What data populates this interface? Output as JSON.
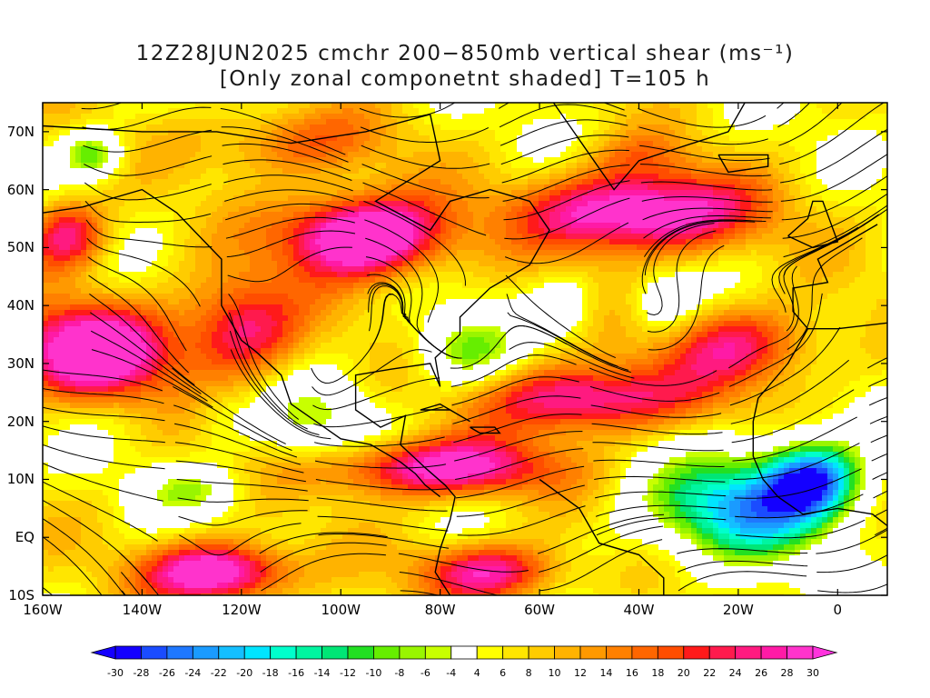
{
  "title_line1": "12Z28JUN2025 cmchr 200−850mb vertical shear (ms⁻¹)",
  "title_line2": "[Only zonal componetnt shaded] T=105 h",
  "lat_labels": [
    "70N",
    "60N",
    "50N",
    "40N",
    "30N",
    "20N",
    "10N",
    "EQ",
    "10S"
  ],
  "lon_labels": [
    "160W",
    "140W",
    "120W",
    "100W",
    "80W",
    "60W",
    "40W",
    "20W",
    "0"
  ],
  "colorbar": {
    "labels": [
      "-30",
      "-28",
      "-26",
      "-24",
      "-22",
      "-20",
      "-18",
      "-16",
      "-14",
      "-12",
      "-10",
      "-8",
      "-6",
      "-4",
      "4",
      "6",
      "8",
      "10",
      "12",
      "14",
      "16",
      "18",
      "20",
      "22",
      "24",
      "26",
      "28",
      "30"
    ],
    "colors": [
      "#1400ff",
      "#1a4cff",
      "#1f78ff",
      "#1a9bff",
      "#14bfff",
      "#00e5ff",
      "#00ffcc",
      "#00f5a0",
      "#00e676",
      "#22e022",
      "#66ee00",
      "#99f500",
      "#c8ff00",
      "#ffffff",
      "#ffff00",
      "#ffe600",
      "#ffcc00",
      "#ffb300",
      "#ff9900",
      "#ff8000",
      "#ff6600",
      "#ff4d00",
      "#ff1a1a",
      "#ff1a4d",
      "#ff1a80",
      "#ff1aa6",
      "#ff33cc"
    ]
  },
  "map_region": {
    "lon_min": -160,
    "lon_max": 10,
    "lat_min": -10,
    "lat_max": 75
  }
}
